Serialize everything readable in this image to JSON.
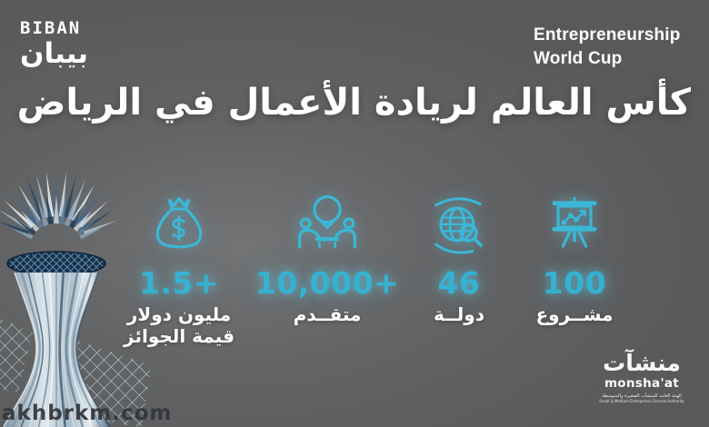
{
  "colors": {
    "background_center": "#727476",
    "background_edge": "#58595b",
    "accent_cyan": "#35b2d1",
    "text_white": "#ffffff",
    "watermark_dark": "#323539"
  },
  "header": {
    "biban_latin": "BIBAN",
    "biban_arabic": "بيبان",
    "event_line1": "Entrepreneurship",
    "event_line2": "World Cup"
  },
  "title": "كأس العالم لريادة الأعمال في الرياض",
  "stats": [
    {
      "id": "prizes",
      "icon": "money-bag-icon",
      "value": "1.5+",
      "label_line1": "مليون دولار",
      "label_line2": "قيمة الجوائز"
    },
    {
      "id": "applicants",
      "icon": "people-meeting-icon",
      "value": "10,000+",
      "label_line1": "متقــدم",
      "label_line2": ""
    },
    {
      "id": "countries",
      "icon": "globe-search-icon",
      "value": "46",
      "label_line1": "دولــة",
      "label_line2": ""
    },
    {
      "id": "projects",
      "icon": "presentation-chart-icon",
      "value": "100",
      "label_line1": "مشــروع",
      "label_line2": ""
    }
  ],
  "footer": {
    "monshaat_arabic": "منشآت",
    "monshaat_latin": "monsha'at",
    "monshaat_sub_arabic": "الهيئة العامة للمنشآت الصغيرة والمتوسطة",
    "monshaat_sub_english": "Small & Medium Enterprises General Authority"
  },
  "watermark": "akhbrkm.com"
}
